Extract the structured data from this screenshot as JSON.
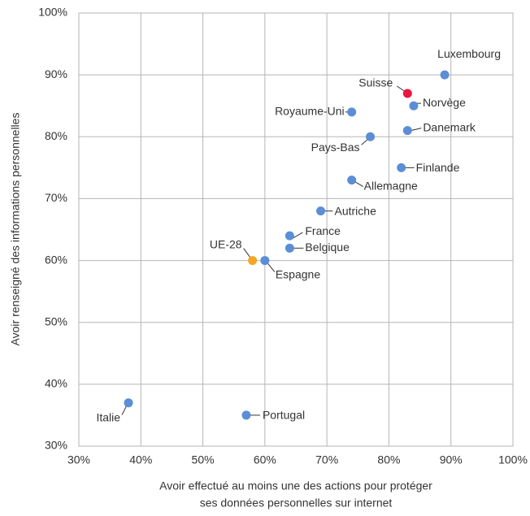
{
  "chart_data": {
    "type": "scatter",
    "xlabel": [
      "Avoir effectué au moins une des actions pour protéger",
      "ses données personnelles sur internet"
    ],
    "ylabel": "Avoir renseigné des informations personnelles",
    "xlim": [
      30,
      100
    ],
    "ylim": [
      30,
      100
    ],
    "xticks": [
      {
        "value": 30,
        "label": "30%"
      },
      {
        "value": 40,
        "label": "40%"
      },
      {
        "value": 50,
        "label": "50%"
      },
      {
        "value": 60,
        "label": "60%"
      },
      {
        "value": 70,
        "label": "70%"
      },
      {
        "value": 80,
        "label": "80%"
      },
      {
        "value": 90,
        "label": "90%"
      },
      {
        "value": 100,
        "label": "100%"
      }
    ],
    "yticks": [
      {
        "value": 30,
        "label": "30%"
      },
      {
        "value": 40,
        "label": "40%"
      },
      {
        "value": 50,
        "label": "50%"
      },
      {
        "value": 60,
        "label": "60%"
      },
      {
        "value": 70,
        "label": "70%"
      },
      {
        "value": 80,
        "label": "80%"
      },
      {
        "value": 90,
        "label": "90%"
      },
      {
        "value": 100,
        "label": "100%"
      }
    ],
    "grid": true,
    "points": [
      {
        "label": "Luxembourg",
        "x": 89,
        "y": 90,
        "color": "#5b8ed6"
      },
      {
        "label": "Suisse",
        "x": 83,
        "y": 87,
        "color": "#e8173f"
      },
      {
        "label": "Norvège",
        "x": 84,
        "y": 85,
        "color": "#5b8ed6"
      },
      {
        "label": "Royaume-Uni",
        "x": 74,
        "y": 84,
        "color": "#5b8ed6"
      },
      {
        "label": "Danemark",
        "x": 83,
        "y": 81,
        "color": "#5b8ed6"
      },
      {
        "label": "Pays-Bas",
        "x": 77,
        "y": 80,
        "color": "#5b8ed6"
      },
      {
        "label": "Finlande",
        "x": 82,
        "y": 75,
        "color": "#5b8ed6"
      },
      {
        "label": "Allemagne",
        "x": 74,
        "y": 73,
        "color": "#5b8ed6"
      },
      {
        "label": "Autriche",
        "x": 69,
        "y": 68,
        "color": "#5b8ed6"
      },
      {
        "label": "France",
        "x": 64,
        "y": 64,
        "color": "#5b8ed6"
      },
      {
        "label": "Belgique",
        "x": 64,
        "y": 62,
        "color": "#5b8ed6"
      },
      {
        "label": "UE-28",
        "x": 58,
        "y": 60,
        "color": "#f5a623"
      },
      {
        "label": "Espagne",
        "x": 60,
        "y": 60,
        "color": "#5b8ed6"
      },
      {
        "label": "Italie",
        "x": 38,
        "y": 37,
        "color": "#5b8ed6"
      },
      {
        "label": "Portugal",
        "x": 57,
        "y": 35,
        "color": "#5b8ed6"
      }
    ]
  }
}
